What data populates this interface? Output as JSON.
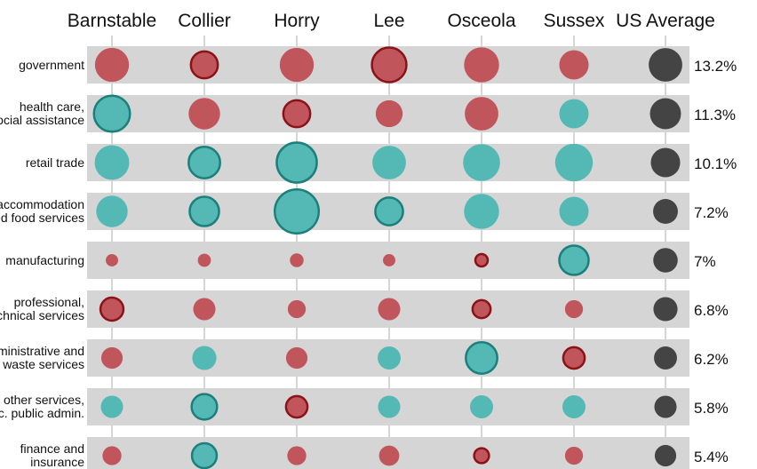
{
  "chart_data": {
    "type": "scatter",
    "title": "",
    "columns": [
      "Barnstable",
      "Collier",
      "Horry",
      "Lee",
      "Osceola",
      "Sussex",
      "US Average"
    ],
    "rows": [
      {
        "label": [
          "government"
        ],
        "us_average": "13.2%"
      },
      {
        "label": [
          "health care,",
          "social assistance"
        ],
        "us_average": "11.3%"
      },
      {
        "label": [
          "retail trade"
        ],
        "us_average": "10.1%"
      },
      {
        "label": [
          "accommodation",
          "and food services"
        ],
        "us_average": "7.2%"
      },
      {
        "label": [
          "manufacturing"
        ],
        "us_average": "7%"
      },
      {
        "label": [
          "professional,",
          "technical services"
        ],
        "us_average": "6.8%"
      },
      {
        "label": [
          "administrative and",
          "waste services"
        ],
        "us_average": "6.2%"
      },
      {
        "label": [
          "other services,",
          "exc. public admin."
        ],
        "us_average": "5.8%"
      },
      {
        "label": [
          "finance and",
          "insurance"
        ],
        "us_average": "5.4%"
      }
    ],
    "us_average_values": [
      13.2,
      11.3,
      10.1,
      7.2,
      7.0,
      6.8,
      6.2,
      5.8,
      5.4
    ],
    "cells": [
      [
        {
          "value": 13.6,
          "color": "red",
          "outlined": false
        },
        {
          "value": 8.5,
          "color": "red",
          "outlined": true
        },
        {
          "value": 13.6,
          "color": "red",
          "outlined": false
        },
        {
          "value": 14.0,
          "color": "red",
          "outlined": true
        },
        {
          "value": 14.4,
          "color": "red",
          "outlined": false
        },
        {
          "value": 10.1,
          "color": "red",
          "outlined": false
        }
      ],
      [
        {
          "value": 15.2,
          "color": "teal",
          "outlined": true
        },
        {
          "value": 11.6,
          "color": "red",
          "outlined": false
        },
        {
          "value": 8.5,
          "color": "red",
          "outlined": true
        },
        {
          "value": 8.5,
          "color": "red",
          "outlined": false
        },
        {
          "value": 13.2,
          "color": "red",
          "outlined": false
        },
        {
          "value": 10.1,
          "color": "teal",
          "outlined": false
        }
      ],
      [
        {
          "value": 14.0,
          "color": "teal",
          "outlined": false
        },
        {
          "value": 11.6,
          "color": "teal",
          "outlined": true
        },
        {
          "value": 18.8,
          "color": "teal",
          "outlined": true
        },
        {
          "value": 13.2,
          "color": "teal",
          "outlined": false
        },
        {
          "value": 16.0,
          "color": "teal",
          "outlined": false
        },
        {
          "value": 16.6,
          "color": "teal",
          "outlined": false
        }
      ],
      [
        {
          "value": 11.6,
          "color": "teal",
          "outlined": false
        },
        {
          "value": 10.1,
          "color": "teal",
          "outlined": true
        },
        {
          "value": 22.7,
          "color": "teal",
          "outlined": true
        },
        {
          "value": 9.0,
          "color": "teal",
          "outlined": true
        },
        {
          "value": 14.4,
          "color": "teal",
          "outlined": false
        },
        {
          "value": 10.1,
          "color": "teal",
          "outlined": false
        }
      ],
      [
        {
          "value": 1.8,
          "color": "red",
          "outlined": false
        },
        {
          "value": 2.0,
          "color": "red",
          "outlined": false
        },
        {
          "value": 2.2,
          "color": "red",
          "outlined": false
        },
        {
          "value": 1.8,
          "color": "red",
          "outlined": false
        },
        {
          "value": 1.8,
          "color": "red",
          "outlined": true
        },
        {
          "value": 10.1,
          "color": "teal",
          "outlined": true
        }
      ],
      [
        {
          "value": 6.2,
          "color": "red",
          "outlined": true
        },
        {
          "value": 5.8,
          "color": "red",
          "outlined": false
        },
        {
          "value": 3.8,
          "color": "red",
          "outlined": false
        },
        {
          "value": 5.8,
          "color": "red",
          "outlined": false
        },
        {
          "value": 3.8,
          "color": "red",
          "outlined": true
        },
        {
          "value": 3.8,
          "color": "red",
          "outlined": false
        }
      ],
      [
        {
          "value": 5.4,
          "color": "red",
          "outlined": false
        },
        {
          "value": 6.8,
          "color": "teal",
          "outlined": false
        },
        {
          "value": 5.4,
          "color": "red",
          "outlined": false
        },
        {
          "value": 6.2,
          "color": "teal",
          "outlined": false
        },
        {
          "value": 11.6,
          "color": "teal",
          "outlined": true
        },
        {
          "value": 5.4,
          "color": "red",
          "outlined": true
        }
      ],
      [
        {
          "value": 5.8,
          "color": "teal",
          "outlined": false
        },
        {
          "value": 7.6,
          "color": "teal",
          "outlined": true
        },
        {
          "value": 5.4,
          "color": "red",
          "outlined": true
        },
        {
          "value": 5.8,
          "color": "teal",
          "outlined": false
        },
        {
          "value": 6.2,
          "color": "teal",
          "outlined": false
        },
        {
          "value": 6.2,
          "color": "teal",
          "outlined": false
        }
      ],
      [
        {
          "value": 4.2,
          "color": "red",
          "outlined": false
        },
        {
          "value": 7.2,
          "color": "teal",
          "outlined": true
        },
        {
          "value": 4.2,
          "color": "red",
          "outlined": false
        },
        {
          "value": 4.8,
          "color": "red",
          "outlined": false
        },
        {
          "value": 2.6,
          "color": "red",
          "outlined": true
        },
        {
          "value": 3.8,
          "color": "red",
          "outlined": false
        }
      ]
    ],
    "colors": {
      "red": "#c0565c",
      "red_stroke": "#8b1217",
      "teal": "#54b9b5",
      "teal_stroke": "#1b7f7c",
      "us_average": "#444444",
      "band": "#d5d5d5",
      "guide": "#c8c8c8"
    },
    "grid": false,
    "legend": "none"
  }
}
